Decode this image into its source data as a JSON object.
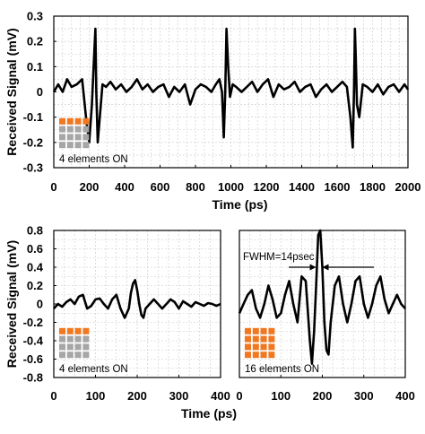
{
  "chart_data": [
    {
      "type": "line",
      "ylabel": "Received Signal (mV)",
      "xlabel": "Time (ps)",
      "xlim": [
        0,
        2000
      ],
      "ylim": [
        -0.3,
        0.3
      ],
      "xticks": [
        "0",
        "200",
        "400",
        "600",
        "800",
        "1000",
        "1200",
        "1400",
        "1600",
        "1800",
        "2000"
      ],
      "yticks": [
        "0.3",
        "0.2",
        "0.1",
        "0",
        "-0.1",
        "-0.2",
        "-0.3"
      ],
      "grid": true,
      "annotation": "4 elements ON",
      "array_icon": {
        "rows": 4,
        "cols": 4,
        "active_rows": 1,
        "on_color": "#f07820",
        "off_color": "#a6a6a6"
      },
      "series": [
        {
          "x": [
            0,
            25,
            50,
            75,
            100,
            130,
            160,
            185,
            200,
            215,
            225,
            235,
            240,
            248,
            260,
            275,
            295,
            320,
            350,
            380,
            410,
            440,
            470,
            500,
            530,
            560,
            590,
            620,
            650,
            680,
            710,
            740,
            770,
            800,
            830,
            860,
            890,
            915,
            935,
            950,
            960,
            968,
            975,
            985,
            995,
            1010,
            1030,
            1060,
            1090,
            1120,
            1150,
            1180,
            1210,
            1240,
            1270,
            1300,
            1330,
            1360,
            1390,
            1420,
            1450,
            1480,
            1510,
            1540,
            1570,
            1600,
            1630,
            1655,
            1675,
            1688,
            1695,
            1700,
            1705,
            1712,
            1725,
            1745,
            1770,
            1800,
            1830,
            1860,
            1890,
            1920,
            1950,
            1980,
            2000
          ],
          "values": [
            0,
            0.03,
            0.0,
            0.05,
            0.02,
            0.03,
            0.05,
            -0.12,
            -0.2,
            -0.05,
            0.1,
            0.25,
            0.0,
            -0.2,
            -0.1,
            0.03,
            0.02,
            0.04,
            0.01,
            0.03,
            0.0,
            0.02,
            0.05,
            0.01,
            0.03,
            0.0,
            0.02,
            0.03,
            -0.02,
            0.02,
            0.0,
            0.03,
            -0.05,
            0.01,
            0.03,
            0.02,
            0.0,
            0.03,
            0.05,
            0.0,
            -0.18,
            0.0,
            0.25,
            0.1,
            -0.02,
            0.03,
            0.02,
            0.0,
            0.02,
            0.04,
            0.0,
            0.03,
            0.05,
            -0.02,
            0.03,
            0.01,
            0.02,
            0.04,
            0.0,
            0.02,
            0.03,
            -0.02,
            0.01,
            0.03,
            0.0,
            0.02,
            0.04,
            0.02,
            -0.1,
            -0.22,
            0.0,
            0.25,
            0.15,
            -0.05,
            -0.1,
            0.03,
            0.02,
            0.0,
            0.03,
            -0.01,
            0.02,
            0.03,
            0.0,
            0.03,
            0.01
          ]
        }
      ]
    },
    {
      "type": "line",
      "ylabel": "Received Signal (mV)",
      "xlabel": "",
      "xlim": [
        0,
        400
      ],
      "ylim": [
        -0.8,
        0.8
      ],
      "xticks": [
        "0",
        "100",
        "200",
        "300",
        "400"
      ],
      "yticks": [
        "0.8",
        "0.6",
        "0.4",
        "0.2",
        "0",
        "-0.2",
        "-0.4",
        "-0.6",
        "-0.8"
      ],
      "grid": true,
      "annotation": "4 elements ON",
      "array_icon": {
        "rows": 4,
        "cols": 4,
        "active_rows": 1,
        "on_color": "#f07820",
        "off_color": "#a6a6a6"
      },
      "series": [
        {
          "x": [
            0,
            10,
            20,
            30,
            40,
            50,
            60,
            70,
            80,
            90,
            100,
            110,
            120,
            130,
            140,
            150,
            160,
            170,
            180,
            185,
            190,
            195,
            200,
            205,
            210,
            215,
            220,
            230,
            240,
            250,
            260,
            270,
            280,
            290,
            300,
            310,
            320,
            330,
            340,
            350,
            360,
            370,
            380,
            390,
            400
          ],
          "values": [
            -0.05,
            0.0,
            -0.03,
            0.02,
            0.05,
            0.0,
            0.08,
            0.1,
            -0.05,
            -0.02,
            0.05,
            0.06,
            0.0,
            -0.05,
            0.05,
            0.1,
            -0.05,
            -0.15,
            -0.05,
            0.12,
            0.22,
            0.26,
            0.15,
            0.0,
            -0.12,
            -0.15,
            -0.05,
            0.0,
            0.05,
            0.0,
            -0.05,
            0.0,
            0.05,
            0.02,
            -0.05,
            0.03,
            0.0,
            -0.03,
            0.02,
            0.0,
            -0.02,
            0.01,
            0.0,
            -0.02,
            0.0
          ]
        }
      ]
    },
    {
      "type": "line",
      "ylabel": "",
      "xlabel": "Time (ps)",
      "xlim": [
        0,
        400
      ],
      "ylim": [
        -0.8,
        0.8
      ],
      "xticks": [
        "0",
        "100",
        "200",
        "300",
        "400"
      ],
      "yticks": [],
      "grid": true,
      "annotation": "16 elements ON",
      "fwhm_label": "FWHM=14psec",
      "array_icon": {
        "rows": 4,
        "cols": 4,
        "active_rows": 4,
        "on_color": "#f07820",
        "off_color": "#a6a6a6"
      },
      "series": [
        {
          "x": [
            0,
            10,
            20,
            30,
            40,
            50,
            60,
            70,
            80,
            90,
            100,
            110,
            120,
            130,
            140,
            150,
            160,
            170,
            175,
            180,
            185,
            190,
            195,
            200,
            205,
            210,
            215,
            220,
            230,
            240,
            250,
            260,
            270,
            280,
            290,
            300,
            310,
            320,
            330,
            340,
            350,
            360,
            370,
            380,
            390,
            400
          ],
          "values": [
            -0.1,
            0.0,
            0.1,
            0.15,
            -0.05,
            -0.15,
            0.0,
            0.2,
            0.05,
            -0.15,
            -0.1,
            0.1,
            0.25,
            0.0,
            -0.2,
            0.3,
            0.25,
            -0.4,
            -0.65,
            -0.3,
            0.2,
            0.75,
            0.8,
            0.4,
            -0.2,
            -0.5,
            -0.55,
            -0.2,
            0.2,
            0.3,
            0.0,
            -0.2,
            0.0,
            0.25,
            0.3,
            0.0,
            -0.15,
            0.0,
            0.2,
            0.3,
            0.05,
            -0.1,
            0.0,
            0.1,
            0.0,
            -0.05
          ]
        }
      ]
    }
  ]
}
